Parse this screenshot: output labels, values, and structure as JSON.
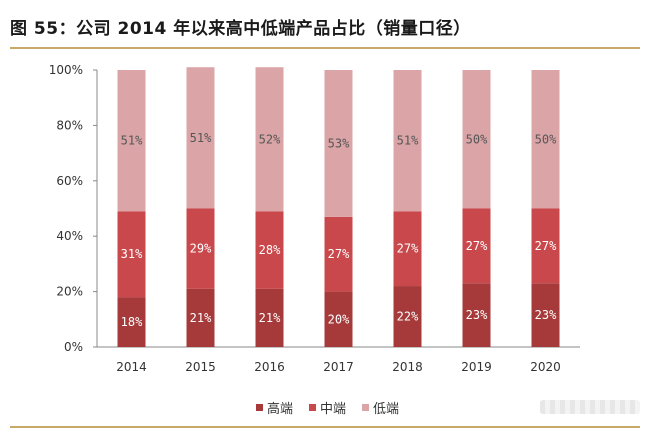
{
  "title": "图 55：公司 2014 年以来高中低端产品占比（销量口径）",
  "chart_data": {
    "type": "bar",
    "stacked": true,
    "categories": [
      "2014",
      "2015",
      "2016",
      "2017",
      "2018",
      "2019",
      "2020"
    ],
    "series": [
      {
        "name": "高端",
        "color": "#a63a3a",
        "values": [
          18,
          21,
          21,
          20,
          22,
          23,
          23
        ]
      },
      {
        "name": "中端",
        "color": "#c9484c",
        "values": [
          31,
          29,
          28,
          27,
          27,
          27,
          27
        ]
      },
      {
        "name": "低端",
        "color": "#dba5a8",
        "values": [
          51,
          51,
          52,
          53,
          51,
          50,
          50
        ]
      }
    ],
    "ylim": [
      0,
      100
    ],
    "yticks": [
      "0%",
      "20%",
      "40%",
      "60%",
      "80%",
      "100%"
    ],
    "value_suffix": "%",
    "grid": false,
    "legend_position": "bottom"
  }
}
